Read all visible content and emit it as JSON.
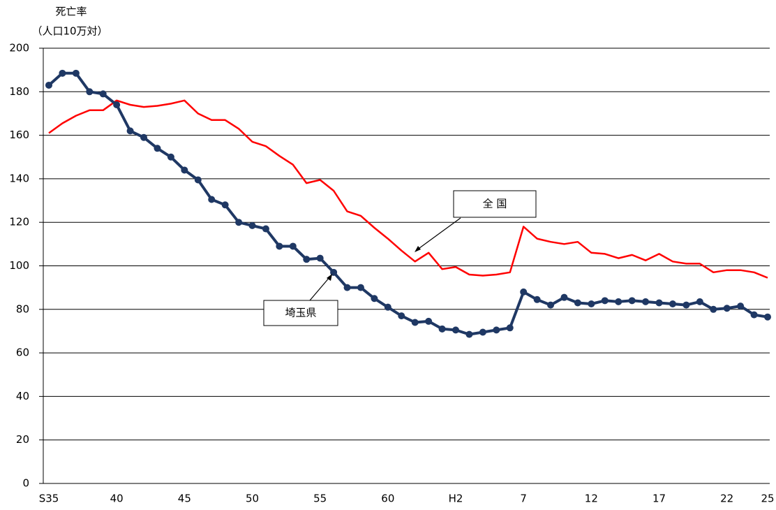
{
  "chart_data": {
    "type": "line",
    "y_label": [
      "死亡率",
      "（人口10万対）"
    ],
    "categories": [
      "S35",
      null,
      null,
      null,
      null,
      "40",
      null,
      null,
      null,
      null,
      "45",
      null,
      null,
      null,
      null,
      "50",
      null,
      null,
      null,
      null,
      "55",
      null,
      null,
      null,
      null,
      "60",
      null,
      null,
      null,
      null,
      "H2",
      null,
      null,
      null,
      null,
      "7",
      null,
      null,
      null,
      null,
      "12",
      null,
      null,
      null,
      null,
      "17",
      null,
      null,
      null,
      null,
      "22",
      null,
      null,
      "25"
    ],
    "series": [
      {
        "name": "埼玉県",
        "color": "#1f3864",
        "marker": true,
        "values": [
          183,
          188.5,
          188.5,
          180,
          179,
          174,
          162,
          159,
          154,
          150,
          144,
          139.5,
          130.5,
          128,
          120,
          118.5,
          117,
          109,
          109,
          103,
          103.5,
          97,
          90,
          90,
          85,
          81,
          77,
          74,
          74.5,
          71,
          70.5,
          68.5,
          69.5,
          70.5,
          71.5,
          88,
          84.5,
          82,
          85.5,
          83,
          82.5,
          84,
          83.5,
          84,
          83.5,
          83,
          82.5,
          82,
          83.5,
          80,
          80.5,
          81.5,
          77.5,
          76.5
        ]
      },
      {
        "name": "全 国",
        "color": "#ff0000",
        "marker": false,
        "values": [
          161,
          165.5,
          169,
          171.5,
          171.5,
          176,
          174,
          173,
          173.5,
          174.5,
          176,
          170,
          167,
          167,
          163,
          157,
          155,
          150.5,
          146.5,
          138,
          139.5,
          134.5,
          125,
          123,
          117.5,
          112.5,
          107,
          102,
          106,
          98.5,
          99.5,
          96,
          95.5,
          96,
          97,
          118,
          112.5,
          111,
          110,
          111,
          106,
          105.5,
          103.5,
          105,
          102.5,
          105.5,
          102,
          101,
          101,
          97,
          98,
          98,
          97,
          94.5
        ]
      }
    ],
    "ylim": [
      0,
      200
    ],
    "yticks": [
      0,
      20,
      40,
      60,
      80,
      100,
      120,
      140,
      160,
      180,
      200
    ],
    "grid": true
  }
}
